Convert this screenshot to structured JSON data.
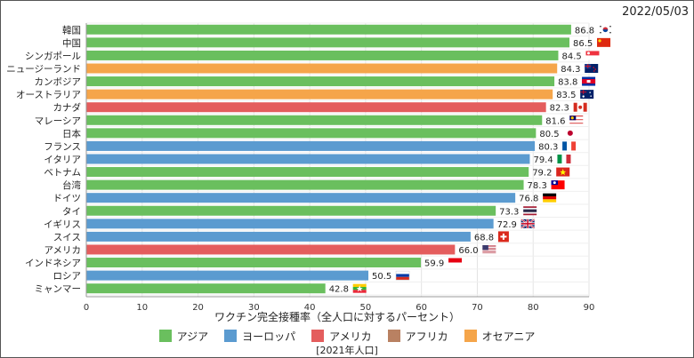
{
  "date": "2022/05/03",
  "footnote": "[2021年人口]",
  "colors": {
    "asia": "#6abf5e",
    "europe": "#5b9bd0",
    "america": "#e45d5d",
    "africa": "#b98162",
    "oceania": "#f5a54a"
  },
  "legend": [
    {
      "key": "asia",
      "label": "アジア"
    },
    {
      "key": "europe",
      "label": "ヨーロッパ"
    },
    {
      "key": "america",
      "label": "アメリカ"
    },
    {
      "key": "africa",
      "label": "アフリカ"
    },
    {
      "key": "oceania",
      "label": "オセアニア"
    }
  ],
  "chart_data": {
    "type": "bar",
    "orientation": "horizontal",
    "xlabel": "ワクチン完全接種率（全人口に対するパーセント）",
    "xlim": [
      0,
      90
    ],
    "xticks": [
      0,
      10,
      20,
      30,
      40,
      50,
      60,
      70,
      80,
      90
    ],
    "grid": true,
    "legend_position": "bottom",
    "categories": [
      "韓国",
      "中国",
      "シンガポール",
      "ニュージーランド",
      "カンボジア",
      "オーストラリア",
      "カナダ",
      "マレーシア",
      "日本",
      "フランス",
      "イタリア",
      "ベトナム",
      "台湾",
      "ドイツ",
      "タイ",
      "イギリス",
      "スイス",
      "アメリカ",
      "インドネシア",
      "ロシア",
      "ミャンマー"
    ],
    "values": [
      86.8,
      86.5,
      84.5,
      84.3,
      83.8,
      83.5,
      82.3,
      81.6,
      80.5,
      80.3,
      79.4,
      79.2,
      78.3,
      76.8,
      73.3,
      72.9,
      68.8,
      66.0,
      59.9,
      50.5,
      42.8
    ],
    "value_labels": [
      "86.8",
      "86.5",
      "84.5",
      "84.3",
      "83.8",
      "83.5",
      "82.3",
      "81.6",
      "80.5",
      "80.3",
      "79.4",
      "79.2",
      "78.3",
      "76.8",
      "73.3",
      "72.9",
      "68.8",
      "66.0",
      "59.9",
      "50.5",
      "42.8"
    ],
    "regions": [
      "asia",
      "asia",
      "asia",
      "oceania",
      "asia",
      "oceania",
      "america",
      "asia",
      "asia",
      "europe",
      "europe",
      "asia",
      "asia",
      "europe",
      "asia",
      "europe",
      "europe",
      "america",
      "asia",
      "europe",
      "asia"
    ],
    "flags": [
      "south-korea-flag",
      "china-flag",
      "singapore-flag",
      "new-zealand-flag",
      "cambodia-flag",
      "australia-flag",
      "canada-flag",
      "malaysia-flag",
      "japan-flag",
      "france-flag",
      "italy-flag",
      "vietnam-flag",
      "taiwan-flag",
      "germany-flag",
      "thailand-flag",
      "uk-flag",
      "switzerland-flag",
      "usa-flag",
      "indonesia-flag",
      "russia-flag",
      "myanmar-flag"
    ]
  }
}
